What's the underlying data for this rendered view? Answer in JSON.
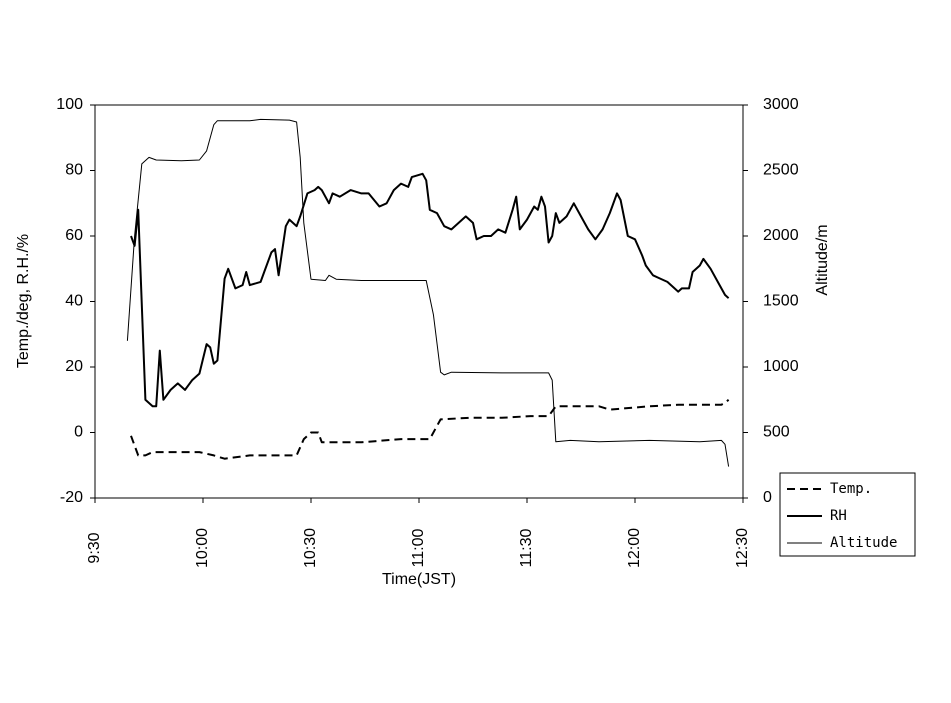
{
  "chart_data": {
    "type": "line",
    "x_label": "Time(JST)",
    "y_label": "Temp./deg, R.H./%",
    "y2_label": "Altitude/m",
    "xlim": [
      570,
      750
    ],
    "xticks": [
      {
        "value": 570,
        "label": "9:30"
      },
      {
        "value": 600,
        "label": "10:00"
      },
      {
        "value": 630,
        "label": "10:30"
      },
      {
        "value": 660,
        "label": "11:00"
      },
      {
        "value": 690,
        "label": "11:30"
      },
      {
        "value": 720,
        "label": "12:00"
      },
      {
        "value": 750,
        "label": "12:30"
      }
    ],
    "ylim": [
      -20,
      100
    ],
    "yticks": [
      -20,
      0,
      20,
      40,
      60,
      80,
      100
    ],
    "y2lim": [
      0,
      3000
    ],
    "y2ticks": [
      0,
      500,
      1000,
      1500,
      2000,
      2500,
      3000
    ],
    "grid": false,
    "legend": "right",
    "series": [
      {
        "name": "Temp.",
        "color": "#000000",
        "line_style": "dashed",
        "line_width": 2,
        "x": [
          580,
          582,
          584,
          586,
          592,
          599,
          603,
          606,
          613,
          624,
          626,
          628,
          630,
          632,
          633,
          644,
          655,
          663,
          665,
          666,
          674,
          683,
          691,
          696,
          698,
          710,
          713,
          724,
          732,
          744,
          745,
          746
        ],
        "values": [
          -1,
          -7,
          -7,
          -6,
          -6,
          -6,
          -7,
          -8,
          -7,
          -7,
          -7,
          -2,
          0,
          0,
          -3,
          -3,
          -2,
          -2,
          2,
          4,
          4.5,
          4.5,
          5,
          5,
          8,
          8,
          7,
          8,
          8.5,
          8.5,
          9,
          10
        ]
      },
      {
        "name": "RH",
        "color": "#000000",
        "line_style": "solid",
        "line_width": 2,
        "x": [
          580,
          581,
          582,
          584,
          586,
          587,
          588,
          589,
          591,
          593,
          595,
          597,
          599,
          601,
          602,
          603,
          604,
          606,
          607,
          609,
          611,
          612,
          613,
          616,
          617,
          619,
          620,
          621,
          623,
          624,
          626,
          627,
          629,
          631,
          632,
          633,
          635,
          636,
          638,
          641,
          644,
          646,
          649,
          651,
          653,
          655,
          657,
          658,
          661,
          662,
          663,
          665,
          667,
          669,
          671,
          673,
          675,
          676,
          678,
          680,
          682,
          684,
          686,
          687,
          688,
          690,
          692,
          693,
          694,
          695,
          696,
          697,
          698,
          699,
          701,
          703,
          705,
          707,
          709,
          711,
          713,
          715,
          716,
          718,
          720,
          722,
          723,
          725,
          727,
          729,
          731,
          732,
          733,
          735,
          736,
          738,
          739,
          741,
          743,
          745,
          746
        ],
        "values": [
          60,
          57,
          68,
          10,
          8,
          8,
          25,
          10,
          13,
          15,
          13,
          16,
          18,
          27,
          26,
          21,
          22,
          47,
          50,
          44,
          45,
          49,
          45,
          46,
          49,
          55,
          56,
          48,
          63,
          65,
          63,
          66,
          73,
          74,
          75,
          74,
          70,
          73,
          72,
          74,
          73,
          73,
          69,
          70,
          74,
          76,
          75,
          78,
          79,
          77,
          68,
          67,
          63,
          62,
          64,
          66,
          64,
          59,
          60,
          60,
          62,
          61,
          68,
          72,
          62,
          65,
          69,
          68,
          72,
          69,
          58,
          60,
          67,
          64,
          66,
          70,
          66,
          62,
          59,
          62,
          67,
          73,
          71,
          60,
          59,
          54,
          51,
          48,
          47,
          46,
          44,
          43,
          44,
          44,
          49,
          51,
          53,
          50,
          46,
          42,
          41
        ]
      },
      {
        "name": "Altitude",
        "color": "#000000",
        "line_style": "solid",
        "line_width": 1,
        "axis": "y2",
        "x": [
          579,
          581,
          583,
          585,
          587,
          594,
          599,
          601,
          603,
          604,
          613,
          616,
          624,
          626,
          627,
          628,
          630,
          634,
          635,
          637,
          644,
          655,
          662,
          664,
          666,
          667,
          669,
          683,
          696,
          697,
          698,
          702,
          710,
          724,
          738,
          744,
          745,
          746
        ],
        "values": [
          1200,
          2000,
          2550,
          2600,
          2580,
          2575,
          2580,
          2650,
          2850,
          2880,
          2880,
          2890,
          2885,
          2870,
          2600,
          2100,
          1670,
          1660,
          1700,
          1670,
          1660,
          1660,
          1660,
          1400,
          960,
          940,
          960,
          955,
          955,
          900,
          430,
          440,
          430,
          440,
          430,
          440,
          410,
          240
        ]
      }
    ]
  }
}
